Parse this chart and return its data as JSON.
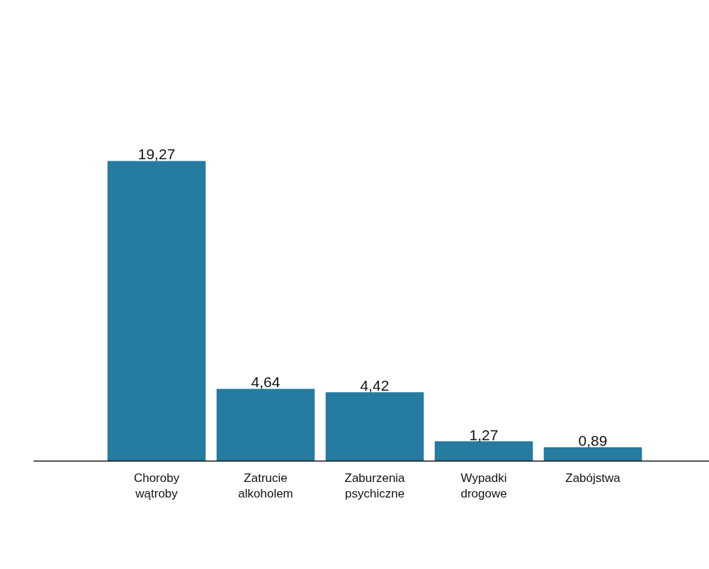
{
  "chart_data": {
    "type": "bar",
    "categories": [
      "Choroby wątroby",
      "Zatrucie alkoholem",
      "Zaburzenia psychiczne",
      "Wypadki drogowe",
      "Zabójstwa"
    ],
    "values": [
      19.27,
      4.64,
      4.42,
      1.27,
      0.89
    ],
    "value_labels": [
      "19,27",
      "4,64",
      "4,42",
      "1,27",
      "0,89"
    ],
    "color": "#267ba0",
    "grid": false,
    "tick_labels": "x"
  }
}
